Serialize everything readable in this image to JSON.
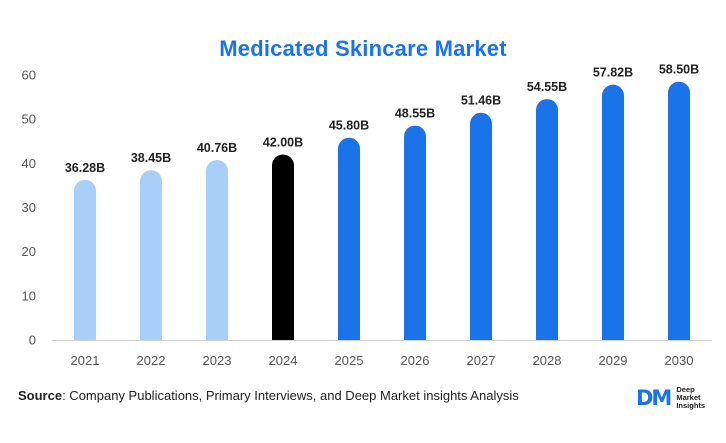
{
  "chart_data": {
    "type": "bar",
    "title": "Medicated Skincare Market",
    "categories": [
      "2021",
      "2022",
      "2023",
      "2024",
      "2025",
      "2026",
      "2027",
      "2028",
      "2029",
      "2030"
    ],
    "values": [
      36.28,
      38.45,
      40.76,
      42.0,
      45.8,
      48.55,
      51.46,
      54.55,
      57.82,
      58.5
    ],
    "data_labels": [
      "36.28B",
      "38.45B",
      "40.76B",
      "42.00B",
      "45.80B",
      "48.55B",
      "51.46B",
      "54.55B",
      "57.82B",
      "58.50B"
    ],
    "bar_colors": [
      "#a8cff7",
      "#a8cff7",
      "#a8cff7",
      "#000000",
      "#1a73e8",
      "#1a73e8",
      "#1a73e8",
      "#1a73e8",
      "#1a73e8",
      "#1a73e8"
    ],
    "ylim": [
      0,
      60
    ],
    "yticks": [
      0,
      10,
      20,
      30,
      40,
      50,
      60
    ],
    "grid": false,
    "xlabel": "",
    "ylabel": ""
  },
  "footer": {
    "source_label": "Source",
    "source_text": ": Company Publications, Primary Interviews, and Deep Market insights Analysis"
  },
  "logo": {
    "mark": "DM",
    "line1": "Deep",
    "line2": "Market",
    "line3": "Insights"
  },
  "colors": {
    "title": "#1a73e8",
    "historical": "#a8cff7",
    "base_year": "#000000",
    "forecast": "#1a73e8"
  }
}
